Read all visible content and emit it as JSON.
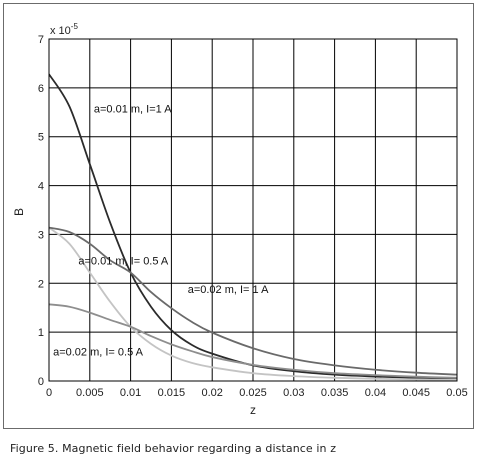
{
  "caption": "Figure 5. Magnetic field behavior regarding a distance in z",
  "chart_data": {
    "type": "line",
    "title": "",
    "xlabel": "z",
    "ylabel": "B",
    "y_multiplier_label": "x 10",
    "y_multiplier_exponent": "-5",
    "xlim": [
      0,
      0.05
    ],
    "ylim": [
      0,
      7
    ],
    "grid": true,
    "x_ticks": [
      "0",
      "0.005",
      "0.01",
      "0.015",
      "0.02",
      "0.025",
      "0.03",
      "0.035",
      "0.04",
      "0.045",
      "0.05"
    ],
    "y_ticks": [
      "0",
      "1",
      "2",
      "3",
      "4",
      "5",
      "6",
      "7"
    ],
    "x": [
      0,
      0.0025,
      0.005,
      0.0075,
      0.01,
      0.0125,
      0.015,
      0.0175,
      0.02,
      0.025,
      0.03,
      0.035,
      0.04,
      0.045,
      0.05
    ],
    "series": [
      {
        "color": "#2b2b2b",
        "values": [
          6.28,
          5.62,
          4.44,
          3.24,
          2.22,
          1.52,
          1.04,
          0.74,
          0.56,
          0.32,
          0.2,
          0.13,
          0.09,
          0.065,
          0.048
        ]
      },
      {
        "color": "#c4c4c4",
        "values": [
          3.14,
          2.81,
          2.22,
          1.62,
          1.11,
          0.76,
          0.52,
          0.37,
          0.28,
          0.16,
          0.1,
          0.065,
          0.045,
          0.032,
          0.024
        ]
      },
      {
        "color": "#6a6a6a",
        "values": [
          3.14,
          3.05,
          2.81,
          2.47,
          2.22,
          1.82,
          1.49,
          1.21,
          0.99,
          0.67,
          0.45,
          0.32,
          0.23,
          0.17,
          0.13
        ]
      },
      {
        "color": "#8e8e8e",
        "values": [
          1.57,
          1.52,
          1.4,
          1.25,
          1.11,
          0.92,
          0.75,
          0.61,
          0.49,
          0.33,
          0.23,
          0.16,
          0.12,
          0.088,
          0.066
        ]
      }
    ],
    "annotations": [
      {
        "text": "a=0.01 m, I=1 A",
        "x": 0.0055,
        "y": 5.5
      },
      {
        "text": "a=0.01 m, I= 0.5 A",
        "x": 0.0036,
        "y": 2.38
      },
      {
        "text": "a=0.02 m, I= 1 A",
        "x": 0.017,
        "y": 1.8
      },
      {
        "text": "a=0.02 m, I= 0.5 A",
        "x": 0.0005,
        "y": 0.52
      }
    ]
  }
}
